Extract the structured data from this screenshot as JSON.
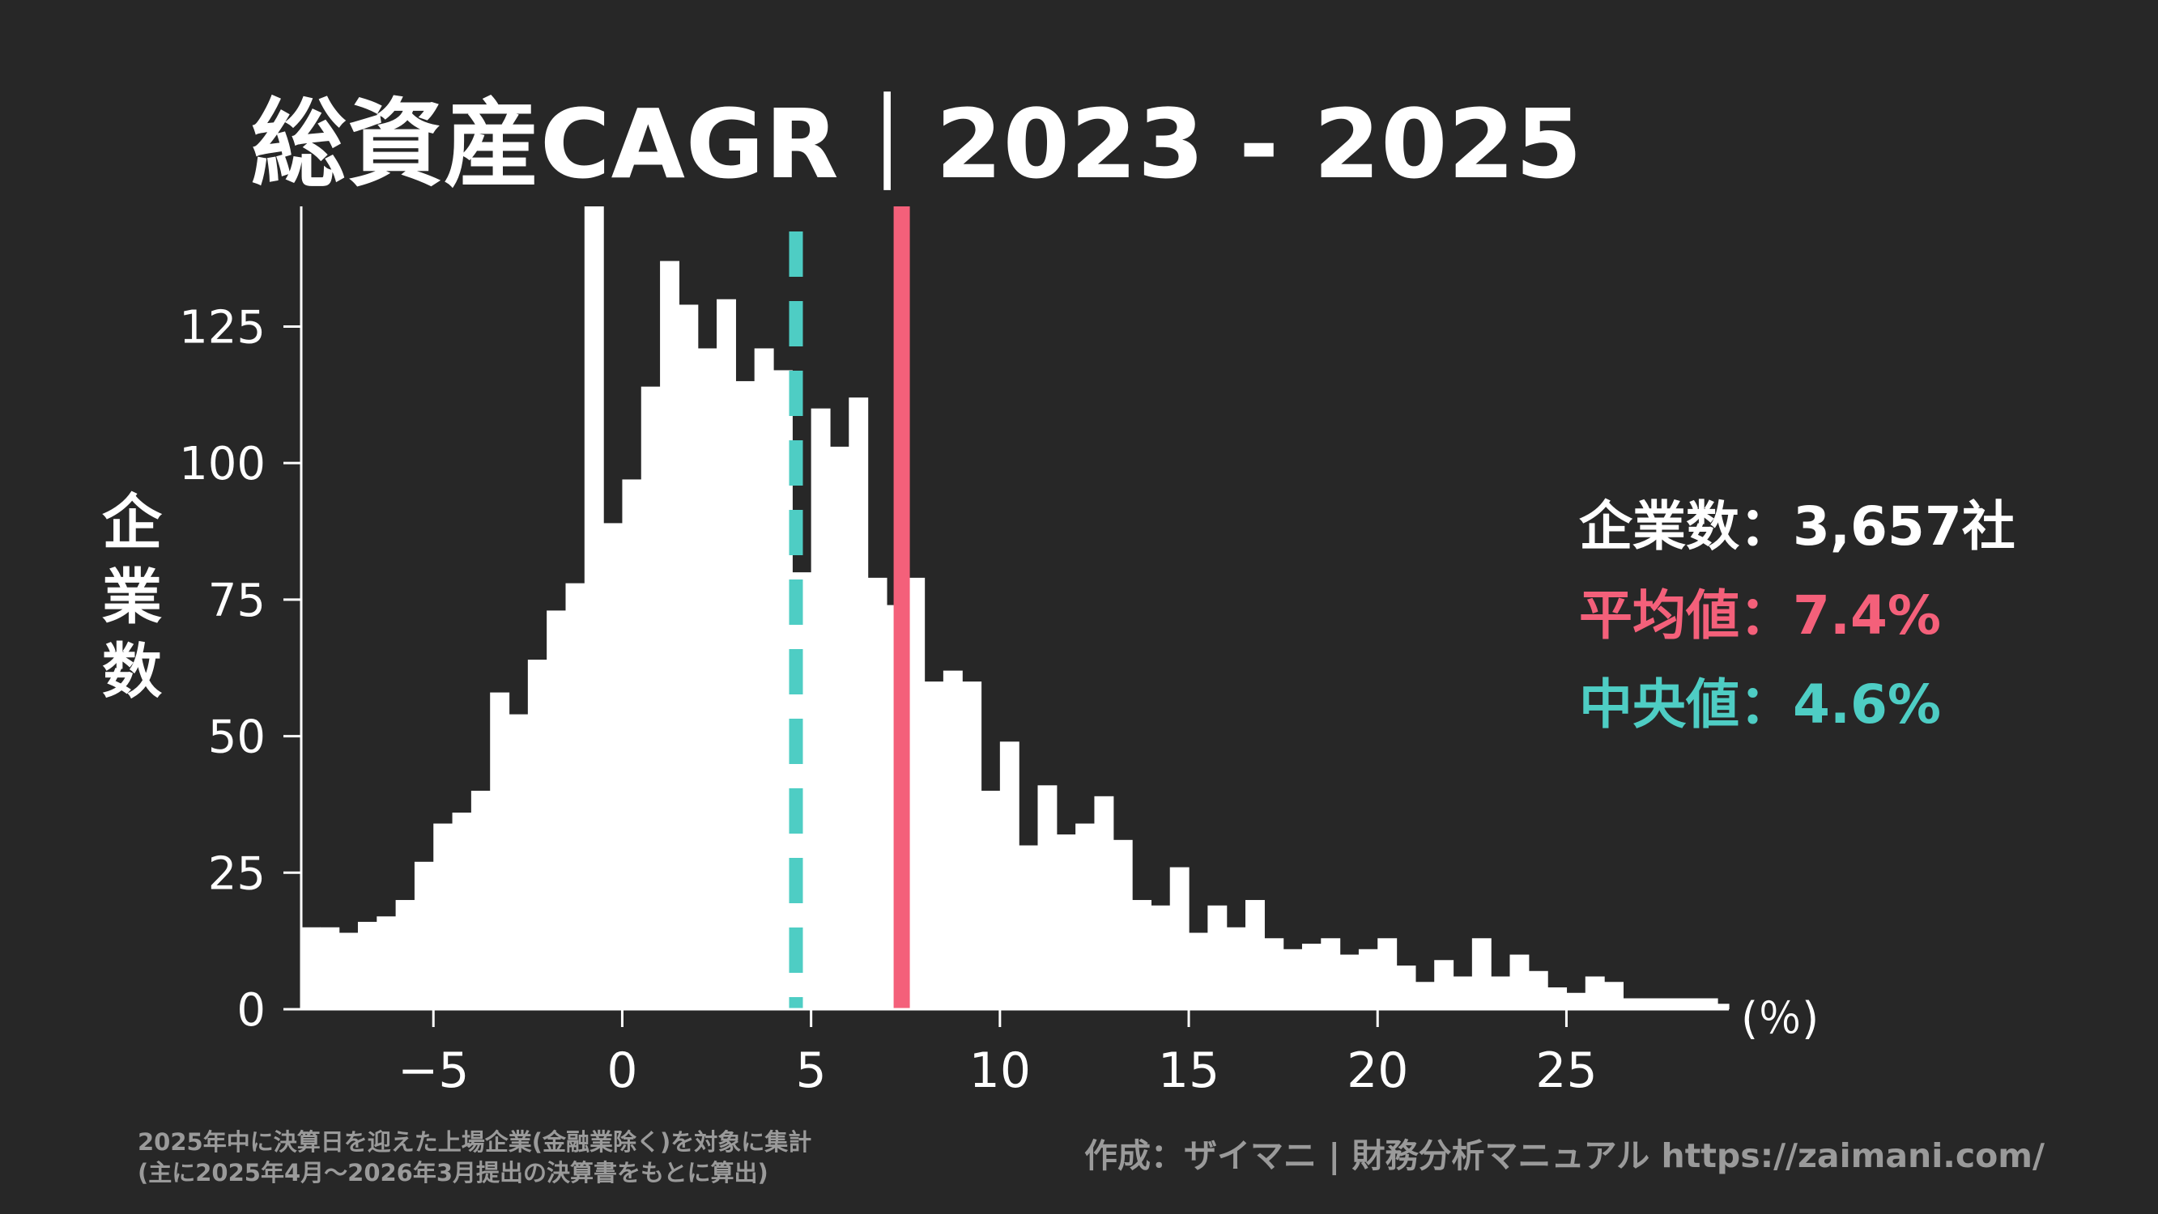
{
  "title": "総資産CAGR｜2023 - 2025",
  "ylabel": [
    "企",
    "業",
    "数"
  ],
  "unit_label": "(％)",
  "stats": {
    "count_label": "企業数：",
    "count_value": "3,657社",
    "count_color": "#ffffff",
    "mean_label": "平均値：",
    "mean_value": "7.4%",
    "mean_color": "#f4607a",
    "median_label": "中央値：",
    "median_value": "4.6%",
    "median_color": "#4ecdc4"
  },
  "note_lines": [
    "2025年中に決算日を迎えた上場企業(金融業除く)を対象に集計",
    "(主に2025年4月～2026年3月提出の決算書をもとに算出)"
  ],
  "credit": "作成：ザイマニ | 財務分析マニュアル https://zaimani.com/",
  "chart_data": {
    "type": "bar",
    "title": "総資産CAGR｜2023 - 2025",
    "xlabel": "(％)",
    "ylabel": "企業数",
    "xlim": [
      -8.5,
      29.3
    ],
    "ylim": [
      0,
      147
    ],
    "bin_width": 0.5,
    "bin_start": -8.5,
    "x_ticks": [
      -5,
      0,
      5,
      10,
      15,
      20,
      25
    ],
    "x_tick_labels": [
      "−5",
      "0",
      "5",
      "10",
      "15",
      "20",
      "25"
    ],
    "y_ticks": [
      0,
      25,
      50,
      75,
      100,
      125
    ],
    "y_tick_labels": [
      "0",
      "25",
      "50",
      "75",
      "100",
      "125"
    ],
    "counts": [
      15,
      15,
      14,
      16,
      17,
      20,
      27,
      34,
      36,
      40,
      58,
      54,
      64,
      73,
      78,
      147,
      89,
      97,
      114,
      137,
      129,
      121,
      130,
      115,
      121,
      117,
      80,
      110,
      103,
      112,
      79,
      74,
      79,
      60,
      62,
      60,
      40,
      49,
      30,
      41,
      32,
      34,
      39,
      31,
      20,
      19,
      26,
      14,
      19,
      15,
      20,
      13,
      11,
      12,
      13,
      10,
      11,
      13,
      8,
      5,
      9,
      6,
      13,
      6,
      10,
      7,
      4,
      3,
      6,
      5,
      2,
      2,
      2,
      2,
      2,
      1,
      1
    ],
    "mean": 7.4,
    "median": 4.6,
    "mean_color": "#f4607a",
    "median_color": "#4ecdc4",
    "bar_color": "#ffffff"
  }
}
